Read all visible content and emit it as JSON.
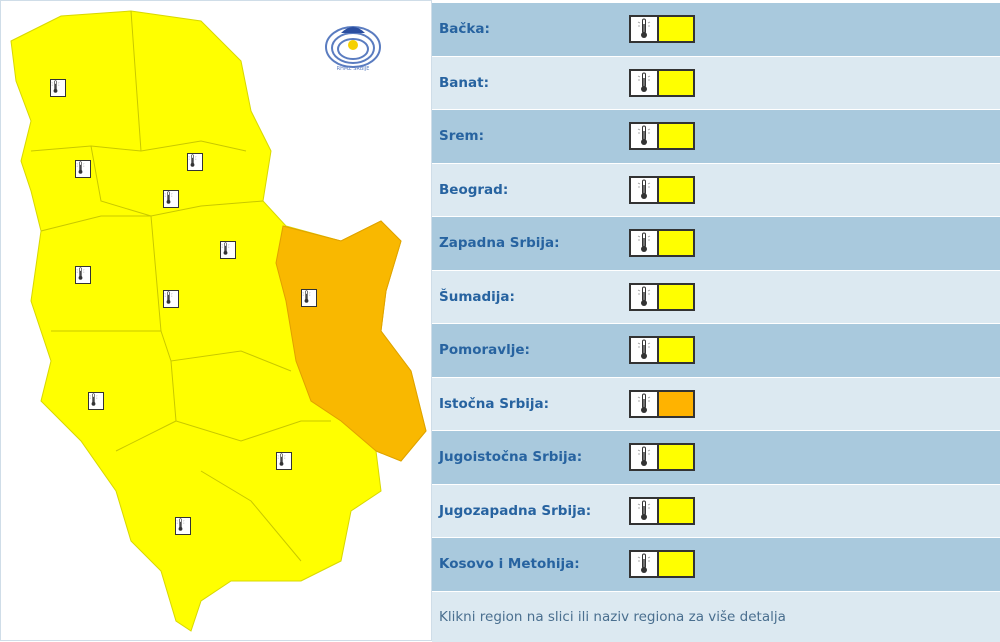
{
  "colors": {
    "yellow": "#ffff00",
    "orange": "#ffb300",
    "map_yellow": "#ffff00",
    "map_orange": "#f9b800"
  },
  "regions": [
    {
      "label": "Bačka:",
      "level": "yellow"
    },
    {
      "label": "Banat:",
      "level": "yellow"
    },
    {
      "label": "Srem:",
      "level": "yellow"
    },
    {
      "label": "Beograd:",
      "level": "yellow"
    },
    {
      "label": "Zapadna Srbija:",
      "level": "yellow"
    },
    {
      "label": "Šumadija:",
      "level": "yellow"
    },
    {
      "label": "Pomoravlje:",
      "level": "yellow"
    },
    {
      "label": "Istočna Srbija:",
      "level": "orange"
    },
    {
      "label": "Jugoistočna Srbija:",
      "level": "yellow"
    },
    {
      "label": "Jugozapadna Srbija:",
      "level": "yellow"
    },
    {
      "label": "Kosovo i Metohija:",
      "level": "yellow"
    }
  ],
  "warning_icon": "thermometer-icon",
  "footer": "Klikni region na slici ili naziv regiona za više detalja",
  "logo_text": "RHMZ SRBIJE"
}
